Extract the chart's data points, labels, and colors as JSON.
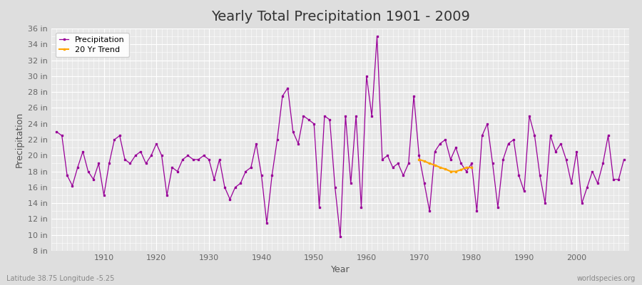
{
  "title": "Yearly Total Precipitation 1901 - 2009",
  "xlabel": "Year",
  "ylabel": "Precipitation",
  "footnote_left": "Latitude 38.75 Longitude -5.25",
  "footnote_right": "worldspecies.org",
  "legend_precipitation": "Precipitation",
  "legend_trend": "20 Yr Trend",
  "precip_color": "#990099",
  "trend_color": "#FFA500",
  "fig_bg_color": "#DEDEDE",
  "plot_bg_color": "#E8E8E8",
  "grid_color": "#FFFFFF",
  "ylim_min": 8,
  "ylim_max": 36,
  "ytick_step": 2,
  "xlim_min": 1900,
  "xlim_max": 2010,
  "years": [
    1901,
    1902,
    1903,
    1904,
    1905,
    1906,
    1907,
    1908,
    1909,
    1910,
    1911,
    1912,
    1913,
    1914,
    1915,
    1916,
    1917,
    1918,
    1919,
    1920,
    1921,
    1922,
    1923,
    1924,
    1925,
    1926,
    1927,
    1928,
    1929,
    1930,
    1931,
    1932,
    1933,
    1934,
    1935,
    1936,
    1937,
    1938,
    1939,
    1940,
    1941,
    1942,
    1943,
    1944,
    1945,
    1946,
    1947,
    1948,
    1949,
    1950,
    1951,
    1952,
    1953,
    1954,
    1955,
    1956,
    1957,
    1958,
    1959,
    1960,
    1961,
    1962,
    1963,
    1964,
    1965,
    1966,
    1967,
    1968,
    1969,
    1970,
    1971,
    1972,
    1973,
    1974,
    1975,
    1976,
    1977,
    1978,
    1979,
    1980,
    1981,
    1982,
    1983,
    1984,
    1985,
    1986,
    1987,
    1988,
    1989,
    1990,
    1991,
    1992,
    1993,
    1994,
    1995,
    1996,
    1997,
    1998,
    1999,
    2000,
    2001,
    2002,
    2003,
    2004,
    2005,
    2006,
    2007,
    2008,
    2009
  ],
  "precipitation": [
    23.0,
    22.5,
    17.5,
    16.2,
    18.5,
    20.5,
    18.0,
    17.0,
    19.0,
    15.0,
    19.0,
    22.0,
    22.5,
    19.5,
    19.0,
    20.0,
    20.5,
    19.0,
    20.0,
    21.5,
    20.0,
    15.0,
    18.5,
    18.0,
    19.5,
    20.0,
    19.5,
    19.5,
    20.0,
    19.5,
    17.0,
    19.5,
    16.0,
    14.5,
    16.0,
    16.5,
    18.0,
    18.5,
    21.5,
    17.5,
    11.5,
    17.5,
    22.0,
    27.5,
    28.5,
    23.0,
    21.5,
    25.0,
    24.5,
    24.0,
    13.5,
    25.0,
    24.5,
    16.0,
    9.8,
    25.0,
    16.5,
    25.0,
    13.5,
    30.0,
    25.0,
    35.0,
    19.5,
    20.0,
    18.5,
    19.0,
    17.5,
    19.0,
    27.5,
    20.0,
    16.5,
    13.0,
    20.5,
    21.5,
    22.0,
    19.5,
    21.0,
    19.0,
    18.0,
    19.0,
    13.0,
    22.5,
    24.0,
    19.0,
    13.5,
    19.5,
    21.5,
    22.0,
    17.5,
    15.5,
    25.0,
    22.5,
    17.5,
    14.0,
    22.5,
    20.5,
    21.5,
    19.5,
    16.5,
    20.5,
    14.0,
    16.0,
    18.0,
    16.5,
    19.0,
    22.5,
    17.0,
    17.0,
    19.5
  ],
  "trend_years": [
    1970,
    1971,
    1972,
    1973,
    1974,
    1975,
    1976,
    1977,
    1978,
    1979,
    1980
  ],
  "trend_values": [
    19.5,
    19.3,
    19.0,
    18.8,
    18.5,
    18.3,
    18.0,
    18.0,
    18.2,
    18.5,
    18.5
  ],
  "xticks": [
    1910,
    1920,
    1930,
    1940,
    1950,
    1960,
    1970,
    1980,
    1990,
    2000
  ],
  "title_fontsize": 14,
  "axis_label_fontsize": 9,
  "tick_fontsize": 8,
  "legend_fontsize": 8,
  "footnote_fontsize": 7
}
